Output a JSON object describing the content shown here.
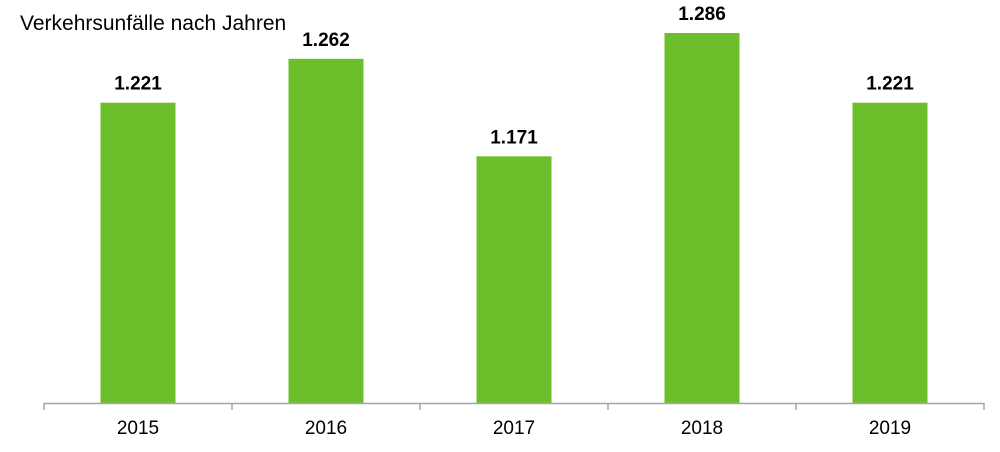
{
  "chart_data": {
    "type": "bar",
    "title": "Verkehrsunfälle nach Jahren",
    "xlabel": "",
    "ylabel": "",
    "categories": [
      "2015",
      "2016",
      "2017",
      "2018",
      "2019"
    ],
    "values": [
      1221,
      1262,
      1171,
      1286,
      1221
    ],
    "value_labels": [
      "1.221",
      "1.262",
      "1.171",
      "1.286",
      "1.221"
    ],
    "ylim": [
      941,
      1300
    ],
    "grid": false,
    "legend": "none",
    "colors": {
      "bar": "#6cbf2a",
      "axis": "#a6a6a6",
      "text": "#000000"
    }
  }
}
